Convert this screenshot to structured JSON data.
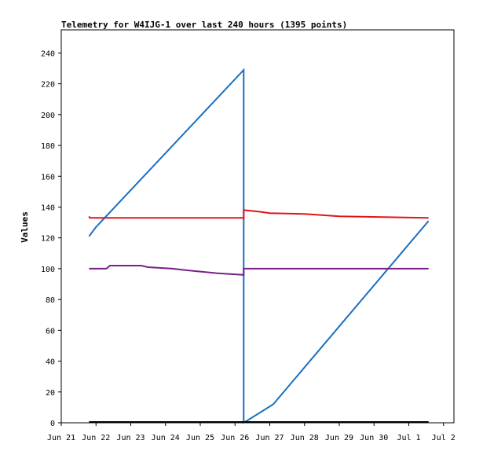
{
  "chart_data": {
    "type": "line",
    "title": "Telemetry for W4IJG-1 over last 240 hours (1395 points)",
    "xlabel": "",
    "ylabel": "Values",
    "ylim": [
      0,
      255
    ],
    "y_ticks": [
      0,
      20,
      40,
      60,
      80,
      100,
      120,
      140,
      160,
      180,
      200,
      220,
      240
    ],
    "x_ticks": [
      {
        "label": "Jun 21",
        "day": 0
      },
      {
        "label": "Jun 22",
        "day": 1
      },
      {
        "label": "Jun 23",
        "day": 2
      },
      {
        "label": "Jun 24",
        "day": 3
      },
      {
        "label": "Jun 25",
        "day": 4
      },
      {
        "label": "Jun 26",
        "day": 5
      },
      {
        "label": "Jun 27",
        "day": 6
      },
      {
        "label": "Jun 28",
        "day": 7
      },
      {
        "label": "Jun 29",
        "day": 8
      },
      {
        "label": "Jun 30",
        "day": 9
      },
      {
        "label": "Jul 1",
        "day": 10
      },
      {
        "label": "Jul 2",
        "day": 11
      }
    ],
    "xlim_days": [
      0,
      11.3
    ],
    "grid": false,
    "legend": "none",
    "series": [
      {
        "color": "#1a6fbf",
        "points": [
          [
            0.8,
            121
          ],
          [
            1.0,
            127
          ],
          [
            5.25,
            229
          ],
          [
            5.25,
            0
          ],
          [
            6.1,
            12
          ],
          [
            10.57,
            131
          ]
        ]
      },
      {
        "color": "#e0151b",
        "points": [
          [
            0.8,
            134
          ],
          [
            0.82,
            133
          ],
          [
            5.25,
            133
          ],
          [
            5.25,
            132
          ],
          [
            5.25,
            138
          ],
          [
            5.7,
            137
          ],
          [
            6.0,
            136
          ],
          [
            7.0,
            135.5
          ],
          [
            8.0,
            134
          ],
          [
            10.57,
            133
          ]
        ]
      },
      {
        "color": "#7a1f8a",
        "points": [
          [
            0.8,
            100
          ],
          [
            1.3,
            100
          ],
          [
            1.4,
            102
          ],
          [
            2.3,
            102
          ],
          [
            2.5,
            101
          ],
          [
            3.2,
            100
          ],
          [
            3.6,
            99
          ],
          [
            4.5,
            97
          ],
          [
            5.25,
            96
          ],
          [
            5.25,
            100
          ],
          [
            10.57,
            100
          ]
        ]
      },
      {
        "color": "#000000",
        "points": [
          [
            0.8,
            0.5
          ],
          [
            10.57,
            0.5
          ]
        ]
      }
    ]
  }
}
